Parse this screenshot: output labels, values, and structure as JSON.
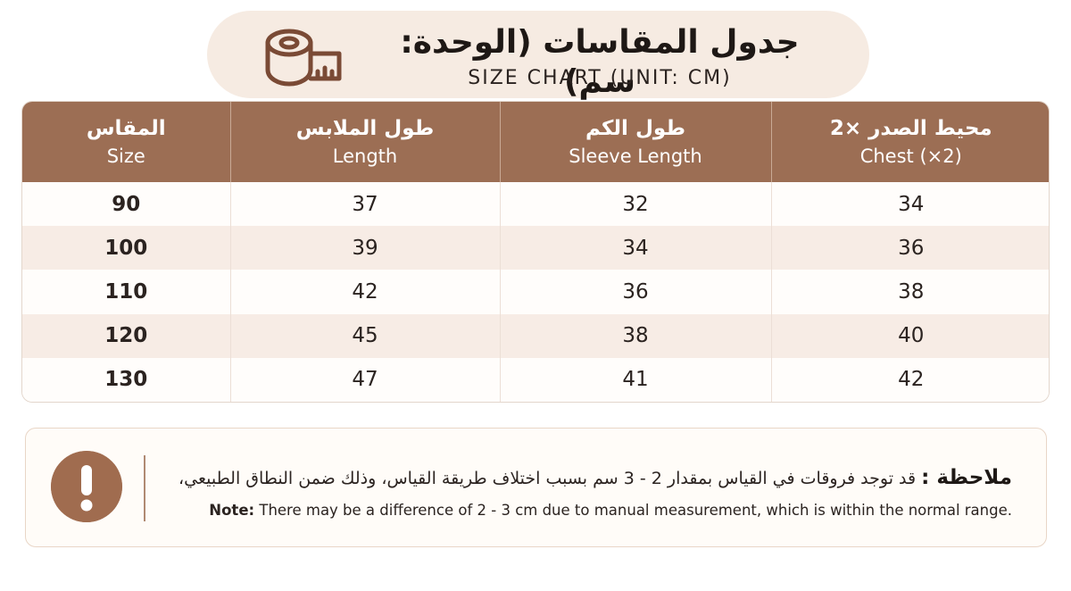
{
  "title": {
    "arabic": "جدول المقاسات (الوحدة: سم)",
    "english": "SIZE CHART (UNIT: CM)",
    "icon": "measuring-tape-icon"
  },
  "table": {
    "headers": [
      {
        "arabic": "المقاس",
        "english": "Size"
      },
      {
        "arabic": "طول الملابس",
        "english": "Length"
      },
      {
        "arabic": "طول الكم",
        "english": "Sleeve Length"
      },
      {
        "arabic": "محيط الصدر ×2",
        "english": "Chest (×2)"
      }
    ],
    "rows": [
      [
        "90",
        "37",
        "32",
        "34"
      ],
      [
        "100",
        "39",
        "34",
        "36"
      ],
      [
        "110",
        "42",
        "36",
        "38"
      ],
      [
        "120",
        "45",
        "38",
        "40"
      ],
      [
        "130",
        "47",
        "41",
        "42"
      ]
    ]
  },
  "note": {
    "icon": "exclamation-icon",
    "arabic_label": "ملاحظة :",
    "arabic_text": "قد توجد فروقات في القياس بمقدار 2 - 3 سم بسبب اختلاف طريقة القياس، وذلك ضمن النطاق الطبيعي،",
    "english_label": "Note:",
    "english_text": "There may be a difference of 2 - 3 cm due to manual measurement, which is within the normal range."
  },
  "colors": {
    "header_bg": "#9c6e54",
    "pill_bg": "#f6ebe2",
    "row_alt": "#f7ece5",
    "icon_bg": "#a06c4f"
  }
}
